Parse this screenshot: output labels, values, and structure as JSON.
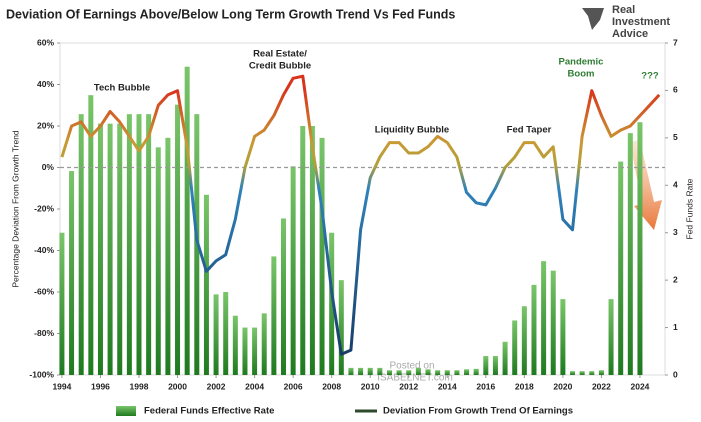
{
  "chart_data": {
    "type": "bar_line",
    "title": "Deviation Of Earnings Above/Below Long Term Growth Trend Vs Fed Funds",
    "logo": [
      "Real",
      "Investment",
      "Advice"
    ],
    "watermark": [
      "Posted on",
      "ISABELNET.com"
    ],
    "ylabel": "Percentage Deviation From Growth Trend",
    "y2label": "Fed Funds Rate",
    "x": [
      1994,
      1994.5,
      1995,
      1995.5,
      1996,
      1996.5,
      1997,
      1997.5,
      1998,
      1998.5,
      1999,
      1999.5,
      2000,
      2000.5,
      2001,
      2001.5,
      2002,
      2002.5,
      2003,
      2003.5,
      2004,
      2004.5,
      2005,
      2005.5,
      2006,
      2006.5,
      2007,
      2007.5,
      2008,
      2008.5,
      2009,
      2009.5,
      2010,
      2010.5,
      2011,
      2011.5,
      2012,
      2012.5,
      2013,
      2013.5,
      2014,
      2014.5,
      2015,
      2015.5,
      2016,
      2016.5,
      2017,
      2017.5,
      2018,
      2018.5,
      2019,
      2019.5,
      2020,
      2020.5,
      2021,
      2021.5,
      2022,
      2022.5,
      2023,
      2023.5,
      2024,
      2024.5,
      2025
    ],
    "series": [
      {
        "name": "Federal Funds Effective Rate",
        "kind": "bar",
        "axis": "y2",
        "color": "#3f9f3f",
        "values": [
          3.0,
          4.3,
          5.5,
          5.9,
          5.3,
          5.3,
          5.3,
          5.5,
          5.5,
          5.5,
          4.8,
          5.0,
          5.7,
          6.5,
          5.5,
          3.8,
          1.7,
          1.75,
          1.25,
          1.0,
          1.0,
          1.3,
          2.5,
          3.3,
          4.4,
          5.25,
          5.25,
          5.0,
          3.0,
          2.0,
          0.15,
          0.15,
          0.15,
          0.15,
          0.1,
          0.1,
          0.1,
          0.15,
          0.12,
          0.1,
          0.1,
          0.1,
          0.12,
          0.13,
          0.4,
          0.4,
          0.7,
          1.15,
          1.45,
          1.9,
          2.4,
          2.2,
          1.6,
          0.08,
          0.08,
          0.08,
          0.1,
          1.6,
          4.5,
          5.1,
          5.33,
          null,
          null
        ]
      },
      {
        "name": "Deviation From Growth Trend Of Earnings",
        "kind": "line",
        "color": "#2e4a2e",
        "values": [
          5,
          20,
          22,
          15,
          20,
          27,
          22,
          15,
          8,
          15,
          30,
          35,
          37,
          10,
          -35,
          -50,
          -45,
          -42,
          -25,
          0,
          15,
          18,
          25,
          35,
          43,
          44,
          10,
          -20,
          -60,
          -90,
          -88,
          -30,
          -5,
          5,
          12,
          12,
          7,
          7,
          10,
          15,
          12,
          5,
          -12,
          -17,
          -18,
          -10,
          0,
          5,
          12,
          12,
          5,
          10,
          -25,
          -30,
          15,
          37,
          25,
          15,
          18,
          20,
          25,
          30,
          35
        ]
      }
    ],
    "annotations": [
      [
        "Tech Bubble"
      ],
      [
        "Real Estate/",
        "Credit Bubble"
      ],
      [
        "Liquidity Bubble"
      ],
      [
        "Fed Taper"
      ],
      [
        "Pandemic",
        "Boom"
      ],
      [
        "???"
      ]
    ],
    "hline": 0,
    "xlim": [
      1993.9,
      2025.3
    ],
    "xticks": [
      1994,
      1996,
      1998,
      2000,
      2002,
      2004,
      2006,
      2008,
      2010,
      2012,
      2014,
      2016,
      2018,
      2020,
      2022,
      2024
    ],
    "ylim": [
      -100,
      60
    ],
    "yticks": [
      {
        "value": 60,
        "label": "60%"
      },
      {
        "value": 40,
        "label": "40%"
      },
      {
        "value": 20,
        "label": "20%"
      },
      {
        "value": 0,
        "label": "0%"
      },
      {
        "value": -20,
        "label": "-20%"
      },
      {
        "value": -40,
        "label": "-40%"
      },
      {
        "value": -60,
        "label": "-60%"
      },
      {
        "value": -80,
        "label": "-80%"
      },
      {
        "value": -100,
        "label": "-100%"
      }
    ],
    "y2lim": [
      0,
      7
    ],
    "y2ticks": [
      0,
      1,
      2,
      3,
      4,
      5,
      6,
      7
    ]
  }
}
